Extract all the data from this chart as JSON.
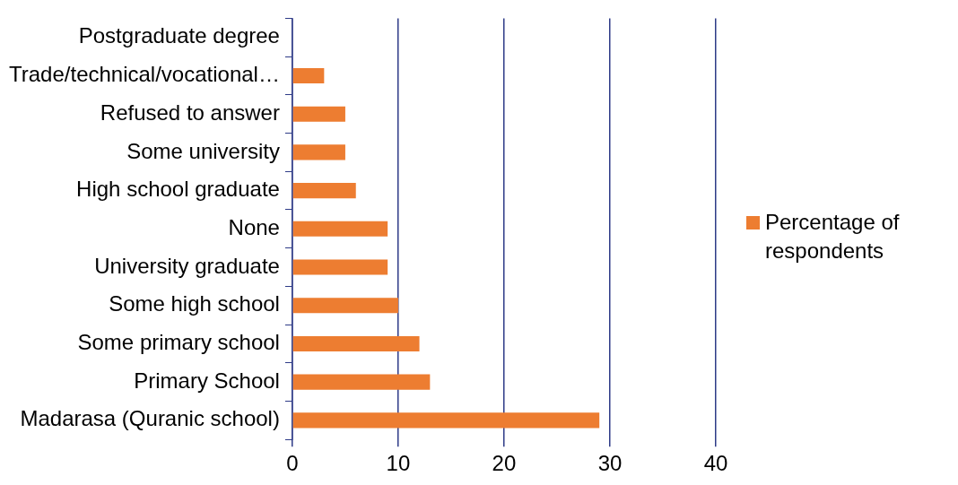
{
  "chart_data": {
    "type": "bar",
    "orientation": "horizontal",
    "categories": [
      "Postgraduate degree",
      "Trade/technical/vocational…",
      "Refused to answer",
      "Some university",
      "High school graduate",
      "None",
      "University graduate",
      "Some high school",
      "Some primary school",
      "Primary School",
      "Madarasa (Quranic school)"
    ],
    "series": [
      {
        "name": "Percentage of respondents",
        "color": "#ed7d31",
        "values": [
          0,
          3,
          5,
          5,
          6,
          9,
          9,
          10,
          12,
          13,
          29
        ]
      }
    ],
    "xlim": [
      0,
      40
    ],
    "xticks": [
      0,
      10,
      20,
      30,
      40
    ],
    "grid": "x",
    "legend": "right"
  }
}
